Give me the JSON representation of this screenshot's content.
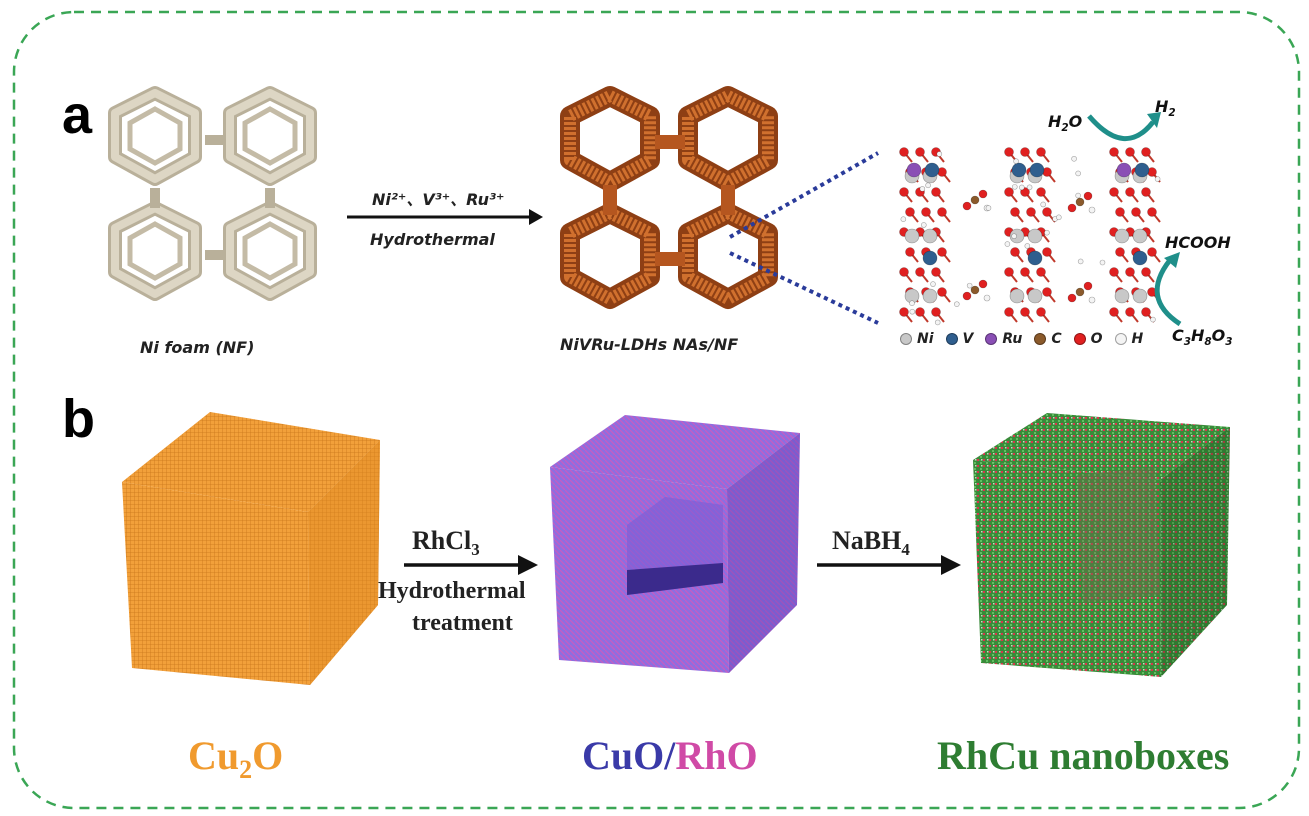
{
  "panel_a": {
    "letter": "a",
    "ni_foam_label": "Ni foam (NF)",
    "reagents_label": "Ni²⁺、V³⁺、Ru³⁺",
    "method_label": "Hydrothermal",
    "product_label": "NiVRu-LDHs NAs/NF",
    "h2o_label": "H",
    "h2o_tail": "O",
    "h2_label": "H",
    "hcooh_label": "HCOOH",
    "glycerol_label": "C",
    "legend": [
      {
        "label": "Ni",
        "color": "#c8c8c8"
      },
      {
        "label": "V",
        "color": "#2f5e8e"
      },
      {
        "label": "Ru",
        "color": "#8a4fb5"
      },
      {
        "label": "C",
        "color": "#8b5a2b"
      },
      {
        "label": "O",
        "color": "#e02020"
      },
      {
        "label": "H",
        "color": "#f4f4f4"
      }
    ]
  },
  "panel_b": {
    "letter": "b",
    "step1_reagent": "RhCl",
    "step1_line2": "Hydrothermal",
    "step1_line3": "treatment",
    "step2_reagent": "NaBH",
    "cu2o_label_a": "Cu",
    "cu2o_label_b": "O",
    "cuo_label": "CuO/",
    "rho_label": "RhO",
    "rhcu_label": "RhCu nanoboxes"
  },
  "colors": {
    "border": "#3aa655",
    "foam": "#cfc8b6",
    "ldh": "#c8662a",
    "cu2o": "#f09a2e",
    "cuo": "#3a3aa8",
    "rho": "#d04aa6",
    "rhcu": "#2e7d32"
  }
}
